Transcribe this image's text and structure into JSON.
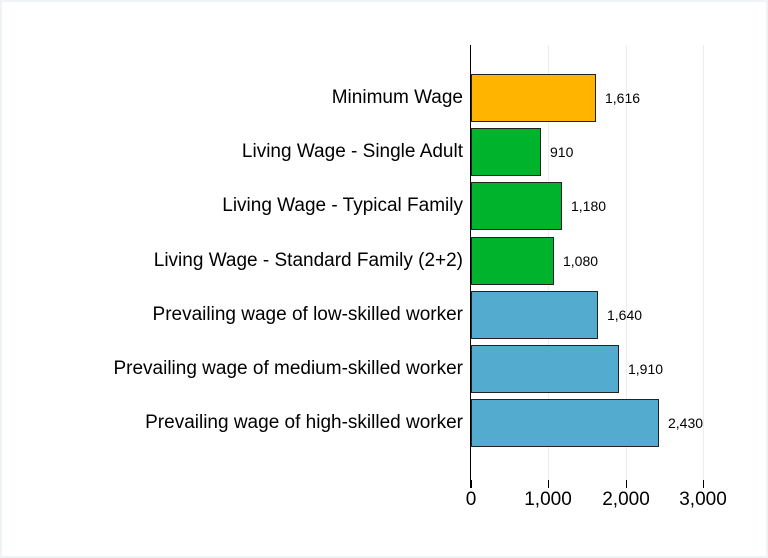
{
  "chart_data": {
    "type": "bar",
    "orientation": "horizontal",
    "title": "",
    "xlabel": "",
    "ylabel": "",
    "xlim": [
      0,
      3000
    ],
    "x_ticks": [
      "0",
      "1,000",
      "2,000",
      "3,000"
    ],
    "grid": true,
    "categories": [
      "Minimum Wage",
      "Living Wage - Single Adult",
      "Living Wage - Typical Family",
      "Living Wage - Standard Family (2+2)",
      "Prevailing wage of low-skilled worker",
      "Prevailing wage of medium-skilled worker",
      "Prevailing wage of high-skilled worker"
    ],
    "values": [
      1616,
      910,
      1180,
      1080,
      1640,
      1910,
      2430
    ],
    "value_labels": [
      "1,616",
      "910",
      "1,180",
      "1,080",
      "1,640",
      "1,910",
      "2,430"
    ],
    "colors": [
      "#ffb400",
      "#00b32c",
      "#00b32c",
      "#00b32c",
      "#53abd0",
      "#53abd0",
      "#53abd0"
    ]
  }
}
